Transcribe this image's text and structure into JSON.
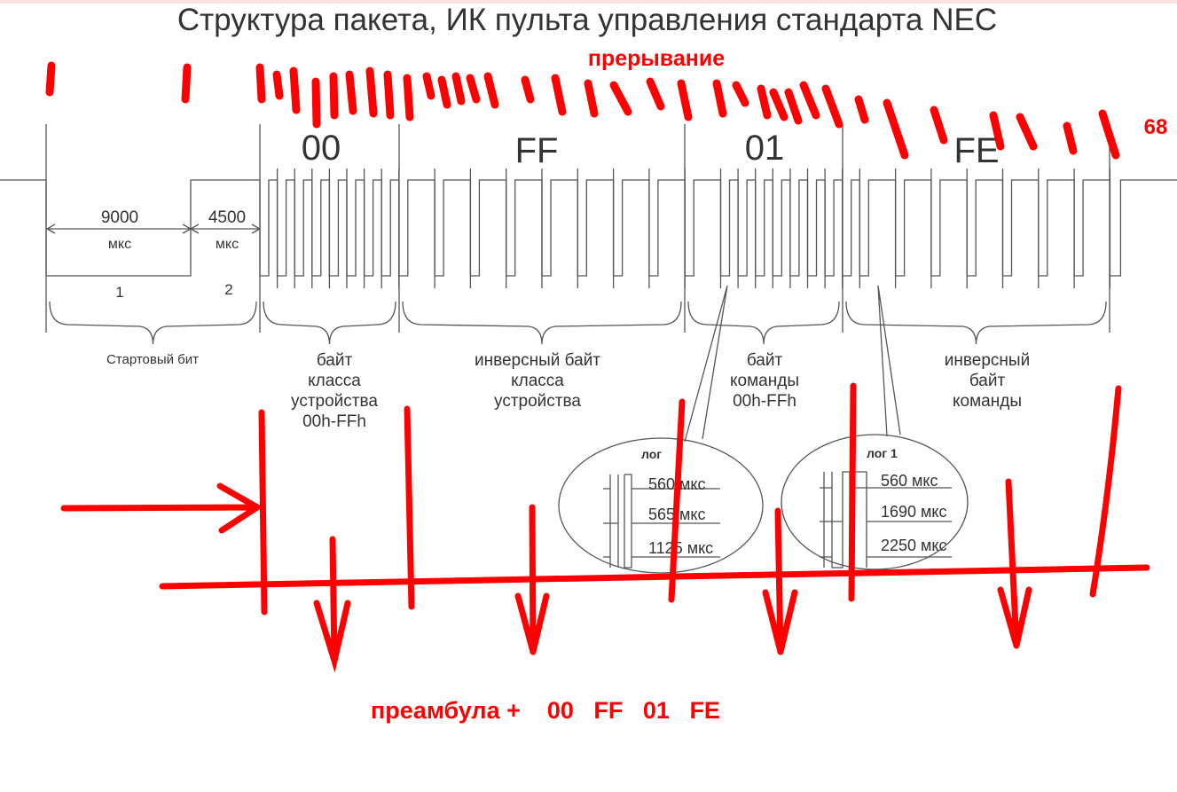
{
  "title": "Структура пакета, ИК пульта управления стандарта NEC",
  "bytes": [
    {
      "label": "00",
      "value": 0,
      "description": [
        "байт",
        "класса",
        "устройства",
        "00h-FFh"
      ]
    },
    {
      "label": "FF",
      "value": 255,
      "description": [
        "инверсный байт",
        "класса",
        "устройства"
      ]
    },
    {
      "label": "01",
      "value": 1,
      "description": [
        "байт",
        "команды",
        "00h-FFh"
      ]
    },
    {
      "label": "FE",
      "value": 254,
      "description": [
        "инверсный",
        "байт",
        "команды"
      ]
    }
  ],
  "start_bit": {
    "label": "Стартовый бит",
    "part1": {
      "value": "9000",
      "unit": "мкс",
      "number": "1"
    },
    "part2": {
      "value": "4500",
      "unit": "мкс",
      "number": "2"
    }
  },
  "log0": {
    "title": "лог",
    "t1": "560 мкс",
    "t2": "565 мкс",
    "t3": "1125 мкс"
  },
  "log1": {
    "title": "лог 1",
    "t1": "560 мкс",
    "t2": "1690 мкс",
    "t3": "2250 мкс"
  },
  "annotations": {
    "interrupt": "прерывание",
    "count": "68",
    "summary": "преамбула +    00   FF   01   FE",
    "color": "#ff0000"
  }
}
